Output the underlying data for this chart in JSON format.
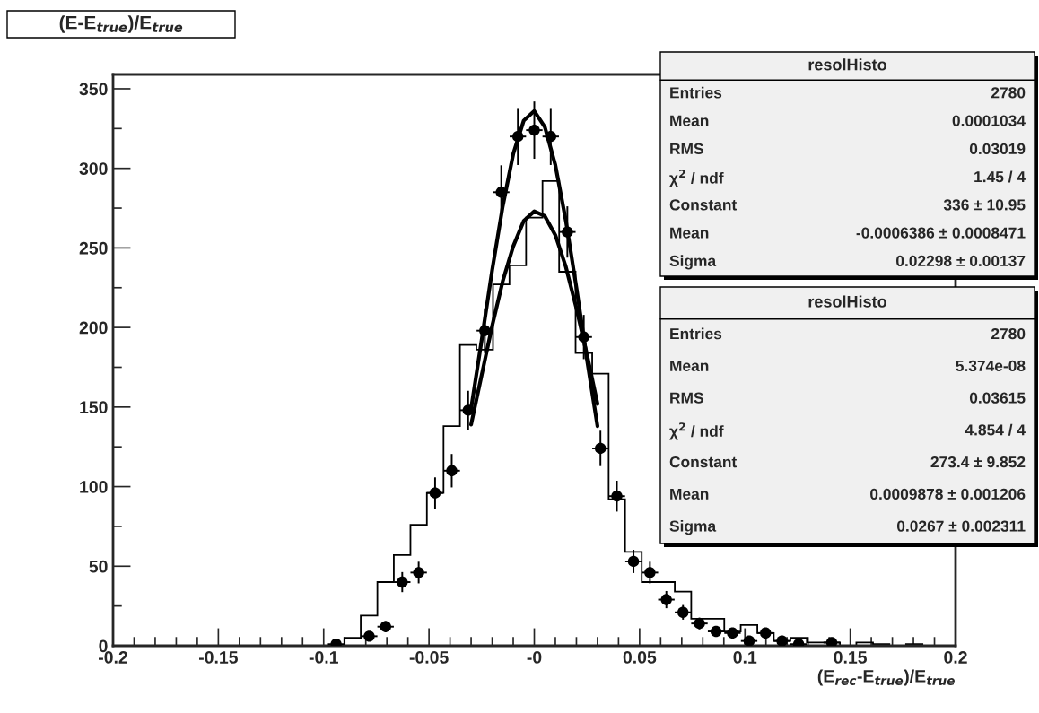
{
  "chart_data": {
    "type": "histogram",
    "title": "(E-E$_{true}$)/E$_{true}$",
    "xlabel": "(E$_{rec}$-E$_{true}$)/E$_{true}$",
    "xlim": [
      -0.2,
      0.2
    ],
    "xticks": [
      -0.2,
      {
        "value": -0.19,
        "label": null
      },
      {
        "value": -0.18,
        "label": null
      },
      {
        "value": -0.17,
        "label": null
      },
      {
        "value": -0.16,
        "label": null
      },
      -0.15,
      {
        "value": -0.14,
        "label": null
      },
      {
        "value": -0.13,
        "label": null
      },
      {
        "value": -0.12,
        "label": null
      },
      {
        "value": -0.11,
        "label": null
      },
      -0.1,
      {
        "value": -0.09,
        "label": null
      },
      {
        "value": -0.08,
        "label": null
      },
      {
        "value": -0.07,
        "label": null
      },
      {
        "value": -0.06,
        "label": null
      },
      -0.05,
      {
        "value": -0.04,
        "label": null
      },
      {
        "value": -0.03,
        "label": null
      },
      {
        "value": -0.02,
        "label": null
      },
      {
        "value": -0.01,
        "label": null
      },
      {
        "value": 0,
        "label": "-0"
      },
      {
        "value": 0.01,
        "label": null
      },
      {
        "value": 0.02,
        "label": null
      },
      {
        "value": 0.03,
        "label": null
      },
      {
        "value": 0.04,
        "label": null
      },
      0.05,
      {
        "value": 0.06,
        "label": null
      },
      {
        "value": 0.07,
        "label": null
      },
      {
        "value": 0.08,
        "label": null
      },
      {
        "value": 0.09,
        "label": null
      },
      0.1,
      {
        "value": 0.11,
        "label": null
      },
      {
        "value": 0.12,
        "label": null
      },
      {
        "value": 0.13,
        "label": null
      },
      {
        "value": 0.14,
        "label": null
      },
      0.15,
      {
        "value": 0.16,
        "label": null
      },
      {
        "value": 0.17,
        "label": null
      },
      {
        "value": 0.18,
        "label": null
      },
      {
        "value": 0.19,
        "label": null
      },
      0.2
    ],
    "ylim": [
      0,
      359
    ],
    "yticks": [
      0,
      {
        "value": 25,
        "label": null
      },
      50,
      {
        "value": 75,
        "label": null
      },
      100,
      {
        "value": 125,
        "label": null
      },
      150,
      {
        "value": 175,
        "label": null
      },
      200,
      {
        "value": 225,
        "label": null
      },
      250,
      {
        "value": 275,
        "label": null
      },
      300,
      {
        "value": 325,
        "label": null
      },
      350
    ],
    "series": [
      {
        "color": "#000000",
        "bins": [
          -0.2,
          -0.1922,
          -0.1843,
          -0.1765,
          -0.1686,
          -0.1608,
          -0.1529,
          -0.1451,
          -0.1373,
          -0.1294,
          -0.1216,
          -0.1137,
          -0.1059,
          -0.098,
          -0.0902,
          -0.0824,
          -0.0745,
          -0.0667,
          -0.0588,
          -0.051,
          -0.0431,
          -0.0353,
          -0.0275,
          -0.0196,
          -0.0118,
          -0.0039,
          0.0039,
          0.0118,
          0.0196,
          0.0275,
          0.0353,
          0.0431,
          0.051,
          0.0588,
          0.0667,
          0.0745,
          0.0824,
          0.0902,
          0.098,
          0.1059,
          0.1137,
          0.1216,
          0.1294,
          0.1373,
          0.1451,
          0.1529,
          0.1608,
          0.1686,
          0.1765,
          0.1843,
          0.1922,
          0.2
        ],
        "values": [
          0,
          0,
          0,
          0,
          0,
          0,
          0,
          0,
          0,
          0,
          0,
          0,
          0,
          0,
          5,
          19,
          40,
          57,
          76,
          96,
          138,
          189,
          186,
          227,
          239,
          269,
          292,
          235,
          184,
          171,
          92,
          59,
          40,
          40,
          34,
          17,
          17,
          9,
          13,
          8,
          3,
          5,
          2,
          2,
          0,
          2,
          1,
          0,
          1,
          0,
          0
        ]
      },
      {
        "type": "scatter",
        "color": "#000000",
        "marker": "circle",
        "x": [
          -0.0941,
          -0.0784,
          -0.0706,
          -0.0627,
          -0.0549,
          -0.0471,
          -0.0392,
          -0.0314,
          -0.0235,
          -0.0157,
          -0.0078,
          0.0,
          0.0078,
          0.0157,
          0.0235,
          0.0314,
          0.0392,
          0.0471,
          0.0549,
          0.0627,
          0.0706,
          0.0784,
          0.0863,
          0.0941,
          0.102,
          0.1098,
          0.1176,
          0.1255,
          0.1412
        ],
        "values": [
          1,
          6,
          12,
          40,
          46,
          96,
          110,
          148,
          198,
          285,
          320,
          324,
          320,
          260,
          194,
          124,
          94,
          53,
          46,
          29,
          21,
          14,
          9,
          8,
          3,
          8,
          3,
          1,
          2
        ],
        "errors": [
          1,
          2.4,
          3.5,
          6.3,
          6.8,
          9.8,
          10.5,
          12.2,
          14.1,
          16.9,
          17.9,
          18,
          17.9,
          16.1,
          13.9,
          11.1,
          9.7,
          7.3,
          6.8,
          5.4,
          4.6,
          3.7,
          3,
          2.8,
          1.7,
          2.8,
          1.7,
          1,
          1.4
        ],
        "xerrors": [
          0.0039,
          0.0039,
          0.0039,
          0.0039,
          0.0039,
          0.0039,
          0.0039,
          0.0039,
          0.0039,
          0.0039,
          0.0039,
          0.0039,
          0.0039,
          0.0039,
          0.0039,
          0.0039,
          0.0039,
          0.0039,
          0.0039,
          0.0039,
          0.0039,
          0.0039,
          0.0039,
          0.0039,
          0.0039,
          0.0039,
          0.0039,
          0.0039,
          0.0039
        ]
      },
      {
        "type": "line",
        "color": "#000000",
        "x": [
          -0.03,
          -0.025,
          -0.02,
          -0.015,
          -0.01,
          -0.005,
          0.0,
          0.005,
          0.01,
          0.015,
          0.02,
          0.025,
          0.03
        ],
        "values": [
          149,
          192,
          236,
          276,
          309,
          330,
          336,
          326,
          302,
          267,
          225,
          180,
          138
        ]
      },
      {
        "type": "line",
        "color": "#000000",
        "x": [
          -0.03,
          -0.025,
          -0.02,
          -0.015,
          -0.01,
          -0.005,
          0.0,
          0.005,
          0.01,
          0.015,
          0.02,
          0.025,
          0.03
        ],
        "values": [
          139,
          170,
          201,
          229,
          251,
          267,
          273,
          270,
          258,
          238,
          212,
          183,
          152
        ]
      }
    ],
    "annotations": [
      "resolHisto",
      "Entries",
      "2780",
      "Mean",
      "0.0001034",
      "RMS",
      "0.03019",
      "χ$^{2}$ / ndf",
      "1.45 / 4",
      "Constant",
      "336 ± 10.95",
      "Mean",
      "-0.0006386 ± 0.0008471",
      "Sigma",
      "0.02298 ± 0.00137",
      "resolHisto",
      "Entries",
      "2780",
      "Mean",
      "5.374e-08",
      "RMS",
      "0.03615",
      "χ$^{2}$ / ndf",
      "4.854 / 4",
      "Constant",
      "273.4 ± 9.852",
      "Mean",
      "0.0009878 ± 0.001206",
      "Sigma",
      "0.0267 ± 0.002311"
    ],
    "grid": false
  }
}
